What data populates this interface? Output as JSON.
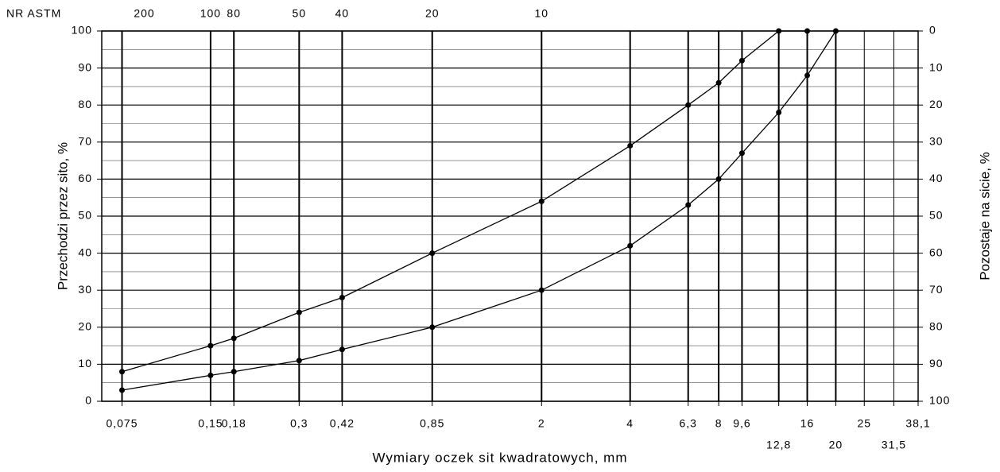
{
  "chart_data": {
    "type": "line",
    "xlabel": "Wymiary oczek sit kwadratowych, mm",
    "ylabel": "Przechodzi przez sito, %",
    "y2label": "Pozostaje na sicie, %",
    "xscale": "log",
    "xlim": [
      0.064,
      38.1
    ],
    "xticks": [
      {
        "value": 0.075,
        "label": "0,075"
      },
      {
        "value": 0.15,
        "label": "0,15"
      },
      {
        "value": 0.18,
        "label": "0,18"
      },
      {
        "value": 0.3,
        "label": "0,3"
      },
      {
        "value": 0.42,
        "label": "0,42"
      },
      {
        "value": 0.85,
        "label": "0,85"
      },
      2,
      4,
      {
        "value": 6.3,
        "label": "6,3"
      },
      8,
      {
        "value": 9.6,
        "label": "9,6"
      },
      {
        "value": 12.8,
        "label": "12,8"
      },
      16,
      20,
      25,
      {
        "value": 31.5,
        "label": "31,5"
      },
      {
        "value": 38.1,
        "label": "38,1"
      }
    ],
    "ylim": [
      0,
      100
    ],
    "yticks": [
      0,
      10,
      20,
      30,
      40,
      50,
      60,
      70,
      80,
      90,
      100
    ],
    "yminor_ticks": [
      5,
      15,
      25,
      35,
      45,
      55,
      65,
      75,
      85,
      95
    ],
    "y2lim": [
      100,
      0
    ],
    "y2ticks": [
      0,
      10,
      20,
      30,
      40,
      50,
      60,
      70,
      80,
      90,
      100
    ],
    "astm": {
      "label": "NR ASTM",
      "ticks": [
        {
          "value": 0.075,
          "label": "200"
        },
        {
          "value": 0.15,
          "label": "100"
        },
        {
          "value": 0.18,
          "label": "80"
        },
        {
          "value": 0.3,
          "label": "50"
        },
        {
          "value": 0.42,
          "label": "40"
        },
        {
          "value": 0.85,
          "label": "20"
        },
        {
          "value": 2,
          "label": "10"
        }
      ]
    },
    "grid": true,
    "series": [
      {
        "color": "#000000",
        "x": [
          0.075,
          0.15,
          0.18,
          0.3,
          0.42,
          0.85,
          2,
          4,
          6.3,
          8,
          9.6,
          12.8,
          16
        ],
        "values": [
          8,
          15,
          17,
          24,
          28,
          40,
          54,
          69,
          80,
          86,
          92,
          100,
          100
        ]
      },
      {
        "color": "#000000",
        "x": [
          0.075,
          0.15,
          0.18,
          0.3,
          0.42,
          0.85,
          2,
          4,
          6.3,
          8,
          9.6,
          12.8,
          16,
          20
        ],
        "values": [
          3,
          7,
          8,
          11,
          14,
          20,
          30,
          42,
          53,
          60,
          67,
          78,
          88,
          100
        ]
      }
    ]
  }
}
